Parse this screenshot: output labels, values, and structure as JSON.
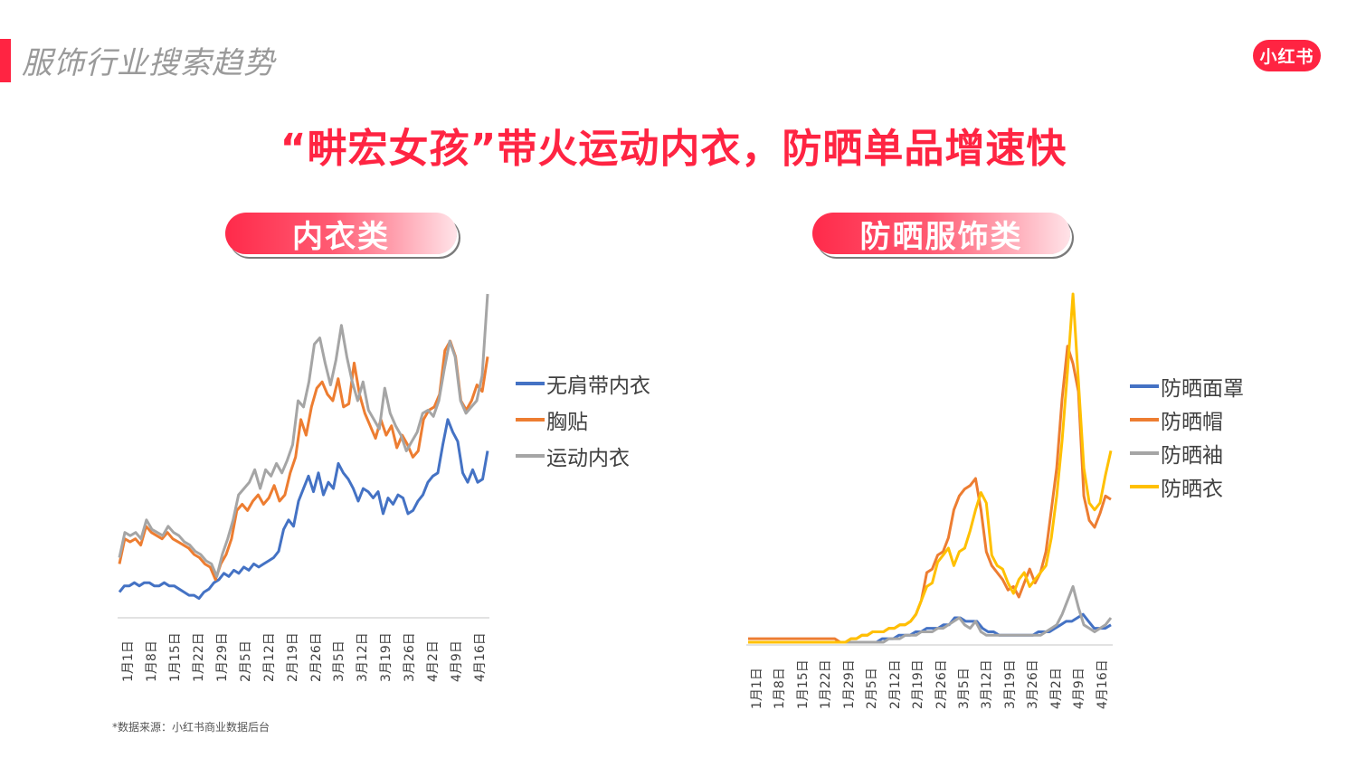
{
  "header": {
    "section_title": "服饰行业搜索趋势",
    "logo_text": "小红书",
    "headline": "“畊宏女孩”带火运动内衣，防晒单品增速快",
    "accent_color": "#ff2442"
  },
  "pills": {
    "left": "内衣类",
    "right": "防晒服饰类"
  },
  "footnote": "*数据来源：小红书商业数据后台",
  "chart_data": [
    {
      "type": "line",
      "title": "内衣类",
      "xlabel": "",
      "ylabel": "",
      "grid": false,
      "legend_position": "right",
      "x_tick_labels": [
        "1月1日",
        "1月8日",
        "1月15日",
        "1月22日",
        "1月29日",
        "2月5日",
        "2月12日",
        "2月19日",
        "2月26日",
        "3月5日",
        "3月12日",
        "3月19日",
        "3月26日",
        "4月2日",
        "4月9日",
        "4月16日"
      ],
      "ylim": [
        0,
        100
      ],
      "series": [
        {
          "name": "无肩带内衣",
          "color": "#4472c4",
          "values": [
            5,
            7,
            7,
            8,
            7,
            8,
            8,
            7,
            7,
            8,
            7,
            7,
            6,
            5,
            4,
            4,
            3,
            5,
            6,
            8,
            9,
            11,
            10,
            12,
            11,
            13,
            12,
            14,
            13,
            14,
            15,
            16,
            18,
            25,
            28,
            26,
            34,
            38,
            42,
            37,
            43,
            36,
            40,
            38,
            46,
            43,
            41,
            38,
            34,
            38,
            37,
            35,
            37,
            30,
            35,
            33,
            36,
            35,
            30,
            31,
            34,
            36,
            40,
            42,
            43,
            52,
            60,
            56,
            53,
            43,
            40,
            44,
            40,
            41,
            50
          ]
        },
        {
          "name": "胸贴",
          "color": "#ed7d31",
          "values": [
            14,
            22,
            21,
            22,
            20,
            26,
            24,
            23,
            22,
            24,
            22,
            21,
            20,
            19,
            17,
            16,
            14,
            13,
            9,
            14,
            17,
            22,
            31,
            33,
            31,
            34,
            36,
            33,
            35,
            39,
            34,
            36,
            43,
            48,
            60,
            55,
            64,
            70,
            72,
            68,
            66,
            73,
            64,
            65,
            78,
            68,
            62,
            58,
            54,
            60,
            55,
            58,
            51,
            55,
            52,
            48,
            50,
            60,
            63,
            64,
            68,
            82,
            85,
            80,
            66,
            63,
            66,
            71,
            69,
            80
          ]
        },
        {
          "name": "运动内衣",
          "color": "#a5a5a5",
          "values": [
            16,
            24,
            23,
            24,
            22,
            28,
            25,
            24,
            23,
            26,
            24,
            23,
            21,
            20,
            18,
            17,
            15,
            14,
            10,
            17,
            22,
            28,
            36,
            38,
            40,
            44,
            38,
            44,
            42,
            46,
            43,
            47,
            52,
            66,
            64,
            72,
            84,
            86,
            78,
            71,
            79,
            90,
            80,
            72,
            66,
            72,
            63,
            60,
            57,
            70,
            62,
            58,
            55,
            50,
            53,
            56,
            62,
            63,
            61,
            66,
            76,
            85,
            80,
            66,
            62,
            64,
            66,
            74,
            100
          ]
        }
      ]
    },
    {
      "type": "line",
      "title": "防晒服饰类",
      "xlabel": "",
      "ylabel": "",
      "grid": false,
      "legend_position": "right",
      "x_tick_labels": [
        "1月1日",
        "1月8日",
        "1月15日",
        "1月22日",
        "1月29日",
        "2月5日",
        "2月12日",
        "2月19日",
        "2月26日",
        "3月5日",
        "3月12日",
        "3月19日",
        "3月26日",
        "4月2日",
        "4月9日",
        "4月16日"
      ],
      "ylim": [
        0,
        100
      ],
      "series": [
        {
          "name": "防晒面罩",
          "color": "#4472c4",
          "values": [
            0,
            0,
            0,
            0,
            0,
            0,
            0,
            0,
            0,
            0,
            0,
            0,
            0,
            0,
            0,
            0,
            0,
            0,
            0,
            0,
            0,
            0,
            0,
            0,
            1,
            1,
            1,
            2,
            2,
            2,
            3,
            3,
            4,
            4,
            4,
            5,
            5,
            7,
            7,
            6,
            6,
            6,
            4,
            3,
            3,
            2,
            2,
            2,
            2,
            2,
            2,
            2,
            3,
            3,
            3,
            4,
            5,
            6,
            6,
            7,
            8,
            6,
            4,
            4,
            4,
            5
          ]
        },
        {
          "name": "防晒帽",
          "color": "#ed7d31",
          "values": [
            1,
            1,
            1,
            1,
            1,
            1,
            1,
            1,
            1,
            1,
            1,
            1,
            1,
            1,
            1,
            1,
            1,
            0,
            0,
            1,
            1,
            2,
            2,
            3,
            3,
            3,
            4,
            4,
            5,
            5,
            6,
            8,
            12,
            20,
            21,
            25,
            26,
            30,
            38,
            42,
            44,
            45,
            47,
            38,
            26,
            22,
            20,
            18,
            15,
            16,
            13,
            17,
            21,
            17,
            20,
            26,
            38,
            50,
            70,
            85,
            80,
            72,
            42,
            35,
            33,
            37,
            42,
            41
          ]
        },
        {
          "name": "防晒袖",
          "color": "#a5a5a5",
          "values": [
            0,
            0,
            0,
            0,
            0,
            0,
            0,
            0,
            0,
            0,
            0,
            0,
            0,
            0,
            0,
            0,
            0,
            0,
            0,
            0,
            0,
            0,
            0,
            0,
            0,
            0,
            1,
            1,
            1,
            2,
            2,
            2,
            3,
            3,
            3,
            4,
            4,
            5,
            6,
            7,
            5,
            4,
            6,
            3,
            2,
            2,
            2,
            2,
            2,
            2,
            2,
            2,
            2,
            2,
            2,
            3,
            4,
            5,
            8,
            12,
            16,
            10,
            5,
            4,
            3,
            4,
            5,
            7
          ]
        },
        {
          "name": "防晒衣",
          "color": "#ffc000",
          "values": [
            0,
            0,
            0,
            0,
            0,
            0,
            0,
            0,
            0,
            0,
            0,
            0,
            0,
            0,
            0,
            0,
            0,
            0,
            0,
            1,
            1,
            2,
            2,
            3,
            3,
            3,
            4,
            4,
            5,
            5,
            6,
            8,
            12,
            16,
            17,
            23,
            25,
            27,
            22,
            26,
            27,
            32,
            38,
            43,
            40,
            25,
            22,
            21,
            17,
            14,
            18,
            20,
            16,
            18,
            20,
            22,
            30,
            42,
            58,
            78,
            100,
            75,
            50,
            40,
            38,
            40,
            48,
            55
          ]
        }
      ]
    }
  ]
}
